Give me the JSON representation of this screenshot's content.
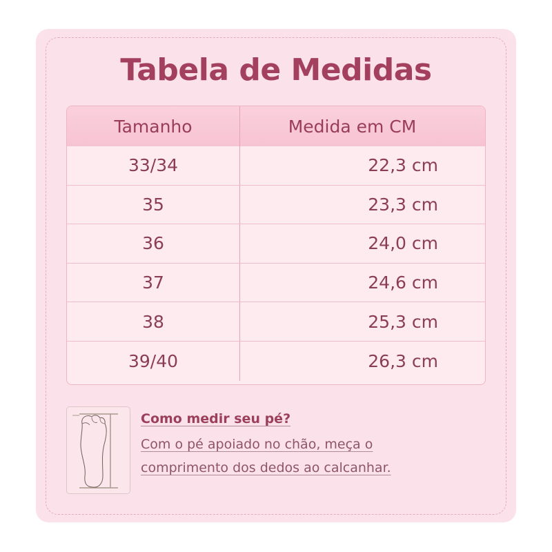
{
  "title": "Tabela de Medidas",
  "table": {
    "headers": [
      "Tamanho",
      "Medida em CM"
    ],
    "rows": [
      [
        "33/34",
        "22,3 cm"
      ],
      [
        "35",
        "23,3 cm"
      ],
      [
        "36",
        "24,0 cm"
      ],
      [
        "37",
        "24,6 cm"
      ],
      [
        "38",
        "25,3 cm"
      ],
      [
        "39/40",
        "26,3 cm"
      ]
    ]
  },
  "howto": {
    "heading": "Como medir seu pé?",
    "line1": "Com o pé apoiado no chão, meça o",
    "line2": "comprimento dos dedos ao calcanhar."
  },
  "colors": {
    "accent": "#a3405f",
    "background": "#fbe2ea",
    "header": "#f8c9d6"
  },
  "icons": [
    "foot-outline-icon"
  ]
}
